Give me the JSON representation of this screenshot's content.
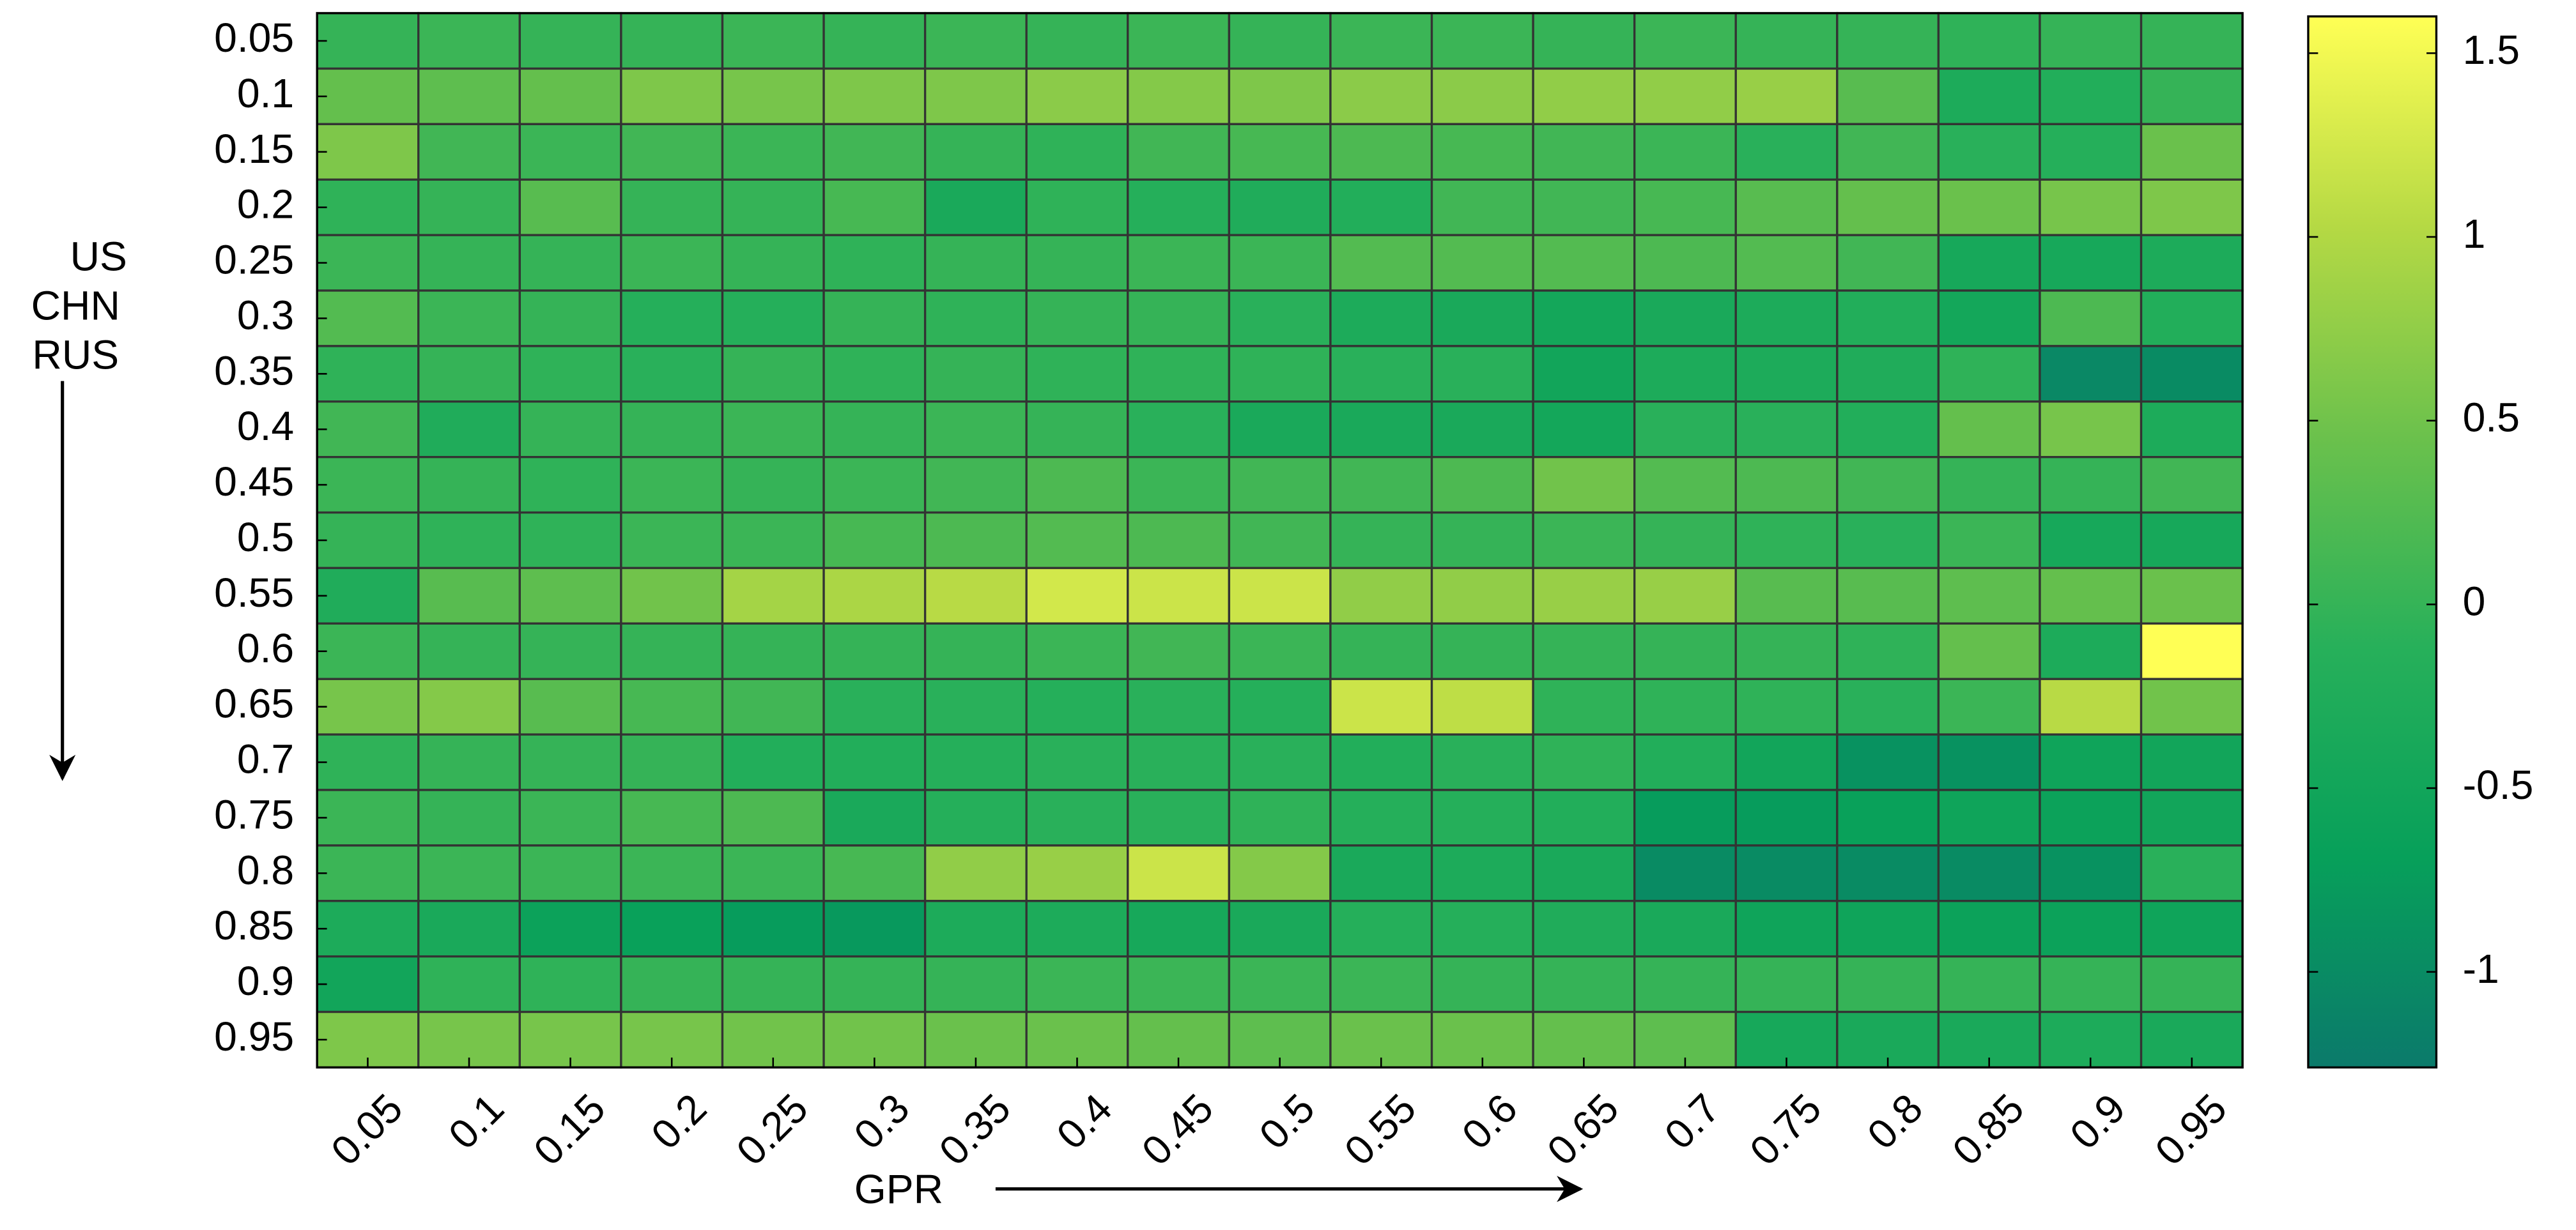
{
  "chart_data": {
    "type": "heatmap",
    "xlabel": "GPR",
    "ylabel": [
      "US",
      "CHN",
      "RUS"
    ],
    "x": [
      0.05,
      0.1,
      0.15,
      0.2,
      0.25,
      0.3,
      0.35,
      0.4,
      0.45,
      0.5,
      0.55,
      0.6,
      0.65,
      0.7,
      0.75,
      0.8,
      0.85,
      0.9,
      0.95
    ],
    "y": [
      0.05,
      0.1,
      0.15,
      0.2,
      0.25,
      0.3,
      0.35,
      0.4,
      0.45,
      0.5,
      0.55,
      0.6,
      0.65,
      0.7,
      0.75,
      0.8,
      0.85,
      0.9,
      0.95
    ],
    "values": [
      [
        0.0,
        0.05,
        0.0,
        0.0,
        0.05,
        0.0,
        0.05,
        0.0,
        0.05,
        0.0,
        0.05,
        0.05,
        0.0,
        0.05,
        0.0,
        0.0,
        -0.05,
        0.0,
        0.0
      ],
      [
        0.4,
        0.35,
        0.4,
        0.6,
        0.55,
        0.6,
        0.6,
        0.7,
        0.65,
        0.6,
        0.7,
        0.7,
        0.75,
        0.75,
        0.8,
        0.3,
        -0.3,
        -0.2,
        0.0
      ],
      [
        0.6,
        0.1,
        0.05,
        0.1,
        0.05,
        0.1,
        0.0,
        -0.05,
        0.1,
        0.15,
        0.2,
        0.15,
        0.1,
        0.05,
        -0.1,
        0.1,
        -0.1,
        -0.15,
        0.45
      ],
      [
        -0.05,
        0.0,
        0.3,
        0.0,
        0.0,
        0.15,
        -0.35,
        -0.05,
        -0.15,
        -0.25,
        -0.2,
        0.1,
        0.1,
        0.15,
        0.3,
        0.4,
        0.45,
        0.55,
        0.6
      ],
      [
        0.05,
        0.0,
        0.0,
        0.05,
        0.0,
        -0.05,
        0.0,
        0.0,
        0.05,
        0.05,
        0.25,
        0.25,
        0.25,
        0.2,
        0.25,
        0.1,
        -0.4,
        -0.4,
        -0.3
      ],
      [
        0.25,
        0.05,
        0.0,
        -0.15,
        -0.15,
        0.0,
        -0.05,
        0.0,
        0.0,
        -0.1,
        -0.3,
        -0.35,
        -0.45,
        -0.35,
        -0.3,
        -0.2,
        -0.45,
        0.2,
        -0.2
      ],
      [
        -0.05,
        0.0,
        -0.05,
        -0.1,
        0.0,
        -0.05,
        0.0,
        -0.05,
        -0.05,
        -0.05,
        -0.1,
        -0.1,
        -0.5,
        -0.3,
        -0.3,
        -0.25,
        -0.05,
        -1.05,
        -1.0
      ],
      [
        0.1,
        -0.25,
        0.0,
        0.0,
        0.05,
        0.0,
        0.05,
        0.0,
        -0.1,
        -0.35,
        -0.35,
        -0.35,
        -0.45,
        -0.1,
        -0.1,
        -0.2,
        0.4,
        0.55,
        -0.3
      ],
      [
        0.05,
        0.0,
        -0.05,
        0.05,
        0.0,
        0.05,
        0.1,
        0.2,
        0.05,
        0.1,
        0.1,
        0.2,
        0.5,
        0.25,
        0.2,
        0.1,
        0.0,
        0.0,
        0.1
      ],
      [
        0.0,
        -0.05,
        -0.05,
        0.05,
        0.05,
        0.15,
        0.2,
        0.25,
        0.2,
        0.1,
        0.0,
        0.0,
        0.05,
        0.0,
        -0.05,
        -0.1,
        0.05,
        -0.4,
        -0.4
      ],
      [
        -0.25,
        0.3,
        0.35,
        0.5,
        0.9,
        0.95,
        1.05,
        1.25,
        1.2,
        1.2,
        0.75,
        0.75,
        0.8,
        0.8,
        0.3,
        0.3,
        0.35,
        0.4,
        0.45
      ],
      [
        0.05,
        0.0,
        0.0,
        0.0,
        0.0,
        0.0,
        0.0,
        0.05,
        0.1,
        0.05,
        0.0,
        0.0,
        0.0,
        0.0,
        0.0,
        -0.05,
        0.4,
        -0.3,
        1.6
      ],
      [
        0.55,
        0.65,
        0.3,
        0.15,
        0.1,
        -0.1,
        -0.1,
        -0.15,
        -0.1,
        -0.15,
        1.2,
        1.1,
        -0.05,
        -0.05,
        -0.05,
        -0.1,
        0.05,
        1.05,
        0.5
      ],
      [
        -0.05,
        0.0,
        0.0,
        0.0,
        -0.2,
        -0.2,
        -0.15,
        -0.1,
        -0.1,
        -0.1,
        -0.2,
        -0.1,
        -0.05,
        -0.2,
        -0.5,
        -0.9,
        -0.9,
        -0.55,
        -0.5
      ],
      [
        0.05,
        0.0,
        0.05,
        0.15,
        0.2,
        -0.35,
        -0.15,
        -0.1,
        -0.1,
        -0.05,
        -0.15,
        -0.15,
        -0.2,
        -0.75,
        -0.75,
        -0.65,
        -0.55,
        -0.6,
        -0.5
      ],
      [
        0.05,
        0.05,
        0.05,
        0.05,
        0.05,
        0.15,
        0.75,
        0.8,
        1.2,
        0.65,
        -0.35,
        -0.3,
        -0.35,
        -1.0,
        -1.0,
        -1.0,
        -1.0,
        -0.9,
        -0.1
      ],
      [
        -0.3,
        -0.35,
        -0.6,
        -0.65,
        -0.75,
        -0.8,
        -0.3,
        -0.3,
        -0.4,
        -0.35,
        -0.15,
        -0.15,
        -0.25,
        -0.35,
        -0.55,
        -0.55,
        -0.6,
        -0.6,
        -0.55
      ],
      [
        -0.5,
        -0.05,
        -0.05,
        0.0,
        0.0,
        0.0,
        0.0,
        0.05,
        0.05,
        0.05,
        0.05,
        0.0,
        0.0,
        0.0,
        0.0,
        0.0,
        0.0,
        0.0,
        0.0
      ],
      [
        0.6,
        0.55,
        0.55,
        0.55,
        0.5,
        0.5,
        0.45,
        0.45,
        0.4,
        0.35,
        0.45,
        0.45,
        0.4,
        0.35,
        -0.4,
        -0.35,
        -0.35,
        -0.3,
        -0.35
      ]
    ],
    "clim": [
      -1.26,
      1.6
    ],
    "cticks": [
      -1,
      -0.5,
      0,
      0.5,
      1,
      1.5
    ],
    "colormap": [
      "#0b7a6b",
      "#07a05a",
      "#27b05a",
      "#6bc14c",
      "#b5d944",
      "#ffff55"
    ],
    "cell_border": "#333333"
  }
}
